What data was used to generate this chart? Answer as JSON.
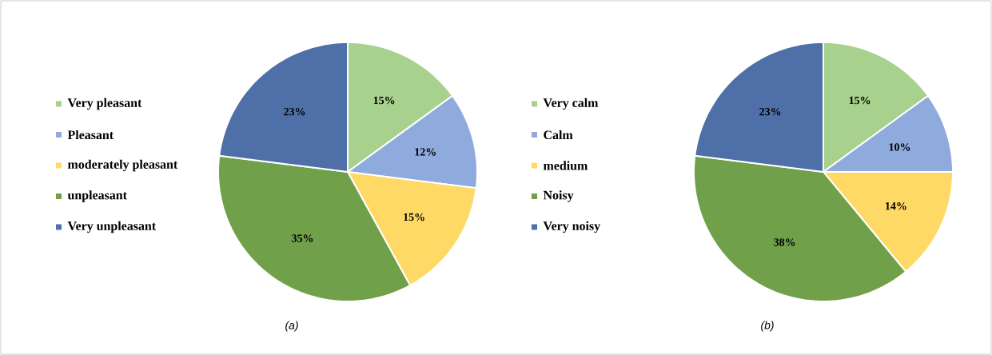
{
  "chart_data": [
    {
      "type": "pie",
      "categories": [
        "Very pleasant",
        "Pleasant",
        "moderately pleasant",
        "unpleasant",
        "Very unpleasant"
      ],
      "values": [
        15,
        12,
        15,
        35,
        23
      ],
      "value_labels": [
        "15%",
        "12%",
        "15%",
        "35%",
        "23%"
      ],
      "colors": [
        "#a9d18e",
        "#8faadc",
        "#ffd966",
        "#70a04a",
        "#4f6fa8"
      ],
      "legend": "left",
      "annotations": [
        "(a)"
      ]
    },
    {
      "type": "pie",
      "categories": [
        "Very calm",
        "Calm",
        "medium",
        "Noisy",
        "Very noisy"
      ],
      "values": [
        15,
        10,
        14,
        38,
        23
      ],
      "value_labels": [
        "15%",
        "10%",
        "14%",
        "38%",
        "23%"
      ],
      "colors": [
        "#a9d18e",
        "#8faadc",
        "#ffd966",
        "#70a04a",
        "#4f6fa8"
      ],
      "legend": "left",
      "annotations": [
        "(b)"
      ]
    }
  ]
}
